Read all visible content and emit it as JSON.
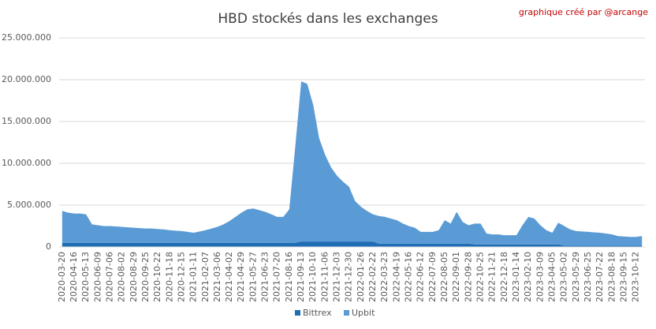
{
  "chart_data": {
    "type": "stacked-area",
    "title": "HBD stockés dans les exchanges",
    "annotation": "graphique créé par @arcange",
    "categories": [
      "2020-03-20",
      null,
      "2020-04-16",
      null,
      "2020-05-13",
      null,
      "2020-06-09",
      null,
      "2020-07-06",
      null,
      "2020-08-02",
      null,
      "2020-08-29",
      null,
      "2020-09-25",
      null,
      "2020-10-22",
      null,
      "2020-11-18",
      null,
      "2020-12-15",
      null,
      "2021-01-11",
      null,
      "2021-02-07",
      null,
      "2021-03-06",
      null,
      "2021-04-02",
      null,
      "2021-04-29",
      null,
      "2021-05-27",
      null,
      "2021-06-23",
      null,
      "2021-07-20",
      null,
      "2021-08-16",
      null,
      "2021-09-13",
      null,
      "2021-10-10",
      null,
      "2021-11-06",
      null,
      "2021-12-03",
      null,
      "2021-12-30",
      null,
      "2022-01-26",
      null,
      "2022-02-22",
      null,
      "2022-03-23",
      null,
      "2022-04-19",
      null,
      "2022-05-16",
      null,
      "2022-06-12",
      null,
      "2022-07-09",
      null,
      "2022-08-05",
      null,
      "2022-09-01",
      null,
      "2022-09-28",
      null,
      "2022-10-25",
      null,
      "2022-11-21",
      null,
      "2022-12-18",
      null,
      "2023-01-14",
      null,
      "2023-02-10",
      null,
      "2023-03-09",
      null,
      "2023-04-05",
      null,
      "2023-05-02",
      null,
      "2023-05-29",
      null,
      "2023-06-25",
      null,
      "2023-07-22",
      null,
      "2023-08-18",
      null,
      "2023-09-15",
      null,
      "2023-10-12",
      null
    ],
    "series": [
      {
        "name": "Bittrex",
        "color": "#1f6db5",
        "values": [
          500000,
          500000,
          500000,
          500000,
          500000,
          500000,
          500000,
          500000,
          500000,
          500000,
          500000,
          500000,
          500000,
          500000,
          500000,
          500000,
          500000,
          500000,
          500000,
          500000,
          500000,
          500000,
          500000,
          500000,
          500000,
          500000,
          500000,
          500000,
          500000,
          500000,
          500000,
          500000,
          500000,
          500000,
          500000,
          500000,
          500000,
          500000,
          500000,
          500000,
          650000,
          650000,
          650000,
          650000,
          650000,
          650000,
          650000,
          650000,
          650000,
          650000,
          650000,
          650000,
          650000,
          400000,
          400000,
          400000,
          400000,
          400000,
          400000,
          400000,
          400000,
          400000,
          400000,
          400000,
          400000,
          400000,
          400000,
          400000,
          400000,
          300000,
          300000,
          300000,
          300000,
          300000,
          300000,
          300000,
          300000,
          300000,
          300000,
          300000,
          300000,
          300000,
          300000,
          300000,
          150000,
          150000,
          150000,
          150000,
          150000,
          150000,
          150000,
          150000,
          150000,
          150000,
          150000,
          150000,
          150000,
          150000
        ]
      },
      {
        "name": "Upbit",
        "color": "#5b9bd5",
        "values": [
          3800000,
          3600000,
          3500000,
          3500000,
          3400000,
          2200000,
          2100000,
          2000000,
          2000000,
          1950000,
          1900000,
          1850000,
          1800000,
          1750000,
          1700000,
          1700000,
          1650000,
          1600000,
          1500000,
          1450000,
          1400000,
          1300000,
          1200000,
          1350000,
          1500000,
          1700000,
          1900000,
          2200000,
          2600000,
          3100000,
          3600000,
          4000000,
          4100000,
          3900000,
          3700000,
          3400000,
          3100000,
          3100000,
          4000000,
          11500000,
          19150000,
          18850000,
          16350000,
          12350000,
          10350000,
          8850000,
          7850000,
          7150000,
          6550000,
          4850000,
          4150000,
          3650000,
          3250000,
          3300000,
          3200000,
          3000000,
          2800000,
          2400000,
          2100000,
          1900000,
          1400000,
          1400000,
          1400000,
          1600000,
          2800000,
          2400000,
          3800000,
          2600000,
          2200000,
          2500000,
          2500000,
          1300000,
          1200000,
          1200000,
          1100000,
          1100000,
          1100000,
          2300000,
          3300000,
          3100000,
          2300000,
          1700000,
          1400000,
          2600000,
          2350000,
          1950000,
          1750000,
          1700000,
          1650000,
          1600000,
          1550000,
          1450000,
          1350000,
          1150000,
          1100000,
          1050000,
          1050000,
          1150000
        ]
      }
    ],
    "ylim": [
      0,
      25000000
    ],
    "yticks": [
      0,
      {
        "value": 5000000,
        "label": "5.000.000"
      },
      {
        "value": 10000000,
        "label": "10.000.000"
      },
      {
        "value": 15000000,
        "label": "15.000.000"
      },
      {
        "value": 20000000,
        "label": "20.000.000"
      },
      {
        "value": 25000000,
        "label": "25.000.000"
      }
    ],
    "grid": true,
    "legend": "bottom"
  }
}
